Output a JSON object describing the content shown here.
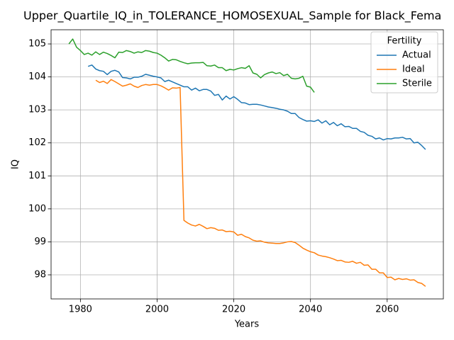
{
  "chart_data": {
    "type": "line",
    "title": "Upper_Quartile_IQ_in_TOLERANCE_HOMOSEXUAL_Sample for Black_Fema",
    "x_label": "Years",
    "y_label": "IQ",
    "x": [
      1977,
      1978,
      1979,
      1980,
      1981,
      1982,
      1983,
      1984,
      1985,
      1986,
      1987,
      1988,
      1989,
      1990,
      1991,
      1992,
      1993,
      1994,
      1995,
      1996,
      1997,
      1998,
      1999,
      2000,
      2001,
      2002,
      2003,
      2004,
      2005,
      2006,
      2007,
      2008,
      2009,
      2010,
      2011,
      2012,
      2013,
      2014,
      2015,
      2016,
      2017,
      2018,
      2019,
      2020,
      2021,
      2022,
      2023,
      2024,
      2025,
      2026,
      2027,
      2028,
      2029,
      2030,
      2031,
      2032,
      2033,
      2034,
      2035,
      2036,
      2037,
      2038,
      2039,
      2040,
      2041,
      2042,
      2043,
      2044,
      2045,
      2046,
      2047,
      2048,
      2049,
      2050,
      2051,
      2052,
      2053,
      2054,
      2055,
      2056,
      2057,
      2058,
      2059,
      2060,
      2061,
      2062,
      2063,
      2064,
      2065,
      2066,
      2067,
      2068,
      2069,
      2070
    ],
    "series": [
      {
        "name": "Actual",
        "color": "#1f77b4",
        "values": [
          null,
          null,
          null,
          null,
          null,
          104.32,
          104.36,
          104.24,
          104.19,
          104.17,
          104.07,
          104.17,
          104.2,
          104.15,
          103.98,
          103.97,
          103.94,
          103.99,
          103.99,
          104.02,
          104.08,
          104.05,
          104.02,
          104.0,
          103.97,
          103.86,
          103.9,
          103.85,
          103.8,
          103.75,
          103.7,
          103.7,
          103.6,
          103.66,
          103.58,
          103.62,
          103.62,
          103.57,
          103.44,
          103.47,
          103.3,
          103.42,
          103.33,
          103.4,
          103.32,
          103.22,
          103.21,
          103.16,
          103.17,
          103.17,
          103.15,
          103.12,
          103.09,
          103.07,
          103.05,
          103.02,
          103.0,
          102.96,
          102.89,
          102.89,
          102.77,
          102.71,
          102.66,
          102.67,
          102.65,
          102.7,
          102.6,
          102.67,
          102.55,
          102.62,
          102.52,
          102.58,
          102.49,
          102.5,
          102.44,
          102.44,
          102.35,
          102.32,
          102.23,
          102.2,
          102.12,
          102.15,
          102.09,
          102.13,
          102.12,
          102.15,
          102.15,
          102.17,
          102.12,
          102.13,
          102.0,
          102.02,
          101.92,
          101.8
        ]
      },
      {
        "name": "Ideal",
        "color": "#ff7f0e",
        "values": [
          null,
          null,
          null,
          null,
          null,
          null,
          null,
          103.9,
          103.83,
          103.87,
          103.8,
          103.92,
          103.86,
          103.79,
          103.72,
          103.75,
          103.79,
          103.72,
          103.68,
          103.74,
          103.77,
          103.75,
          103.77,
          103.77,
          103.73,
          103.67,
          103.6,
          103.67,
          103.66,
          103.68,
          99.65,
          99.57,
          99.51,
          99.48,
          99.53,
          99.47,
          99.4,
          99.43,
          99.41,
          99.35,
          99.36,
          99.31,
          99.32,
          99.3,
          99.2,
          99.23,
          99.16,
          99.12,
          99.05,
          99.02,
          99.03,
          98.99,
          98.97,
          98.96,
          98.95,
          98.95,
          98.97,
          99.0,
          99.01,
          98.98,
          98.9,
          98.81,
          98.75,
          98.7,
          98.67,
          98.6,
          98.57,
          98.55,
          98.52,
          98.48,
          98.43,
          98.44,
          98.39,
          98.38,
          98.41,
          98.35,
          98.38,
          98.29,
          98.3,
          98.17,
          98.17,
          98.06,
          98.06,
          97.92,
          97.93,
          97.85,
          97.89,
          97.86,
          97.88,
          97.84,
          97.85,
          97.77,
          97.74,
          97.65
        ]
      },
      {
        "name": "Sterile",
        "color": "#2ca02c",
        "values": [
          105.0,
          105.15,
          104.9,
          104.8,
          104.68,
          104.72,
          104.66,
          104.76,
          104.68,
          104.75,
          104.71,
          104.65,
          104.58,
          104.75,
          104.74,
          104.8,
          104.77,
          104.72,
          104.76,
          104.74,
          104.8,
          104.78,
          104.74,
          104.72,
          104.66,
          104.58,
          104.48,
          104.53,
          104.52,
          104.47,
          104.43,
          104.4,
          104.42,
          104.43,
          104.43,
          104.44,
          104.34,
          104.33,
          104.36,
          104.28,
          104.28,
          104.19,
          104.23,
          104.21,
          104.25,
          104.28,
          104.26,
          104.34,
          104.12,
          104.08,
          103.97,
          104.07,
          104.12,
          104.15,
          104.1,
          104.13,
          104.04,
          104.08,
          103.96,
          103.94,
          103.96,
          104.02,
          103.72,
          103.69,
          103.53,
          null,
          null,
          null,
          null,
          null,
          null,
          null,
          null,
          null,
          null,
          null,
          null,
          null,
          null,
          null,
          null,
          null,
          null,
          null,
          null,
          null,
          null,
          null,
          null,
          null,
          null,
          null,
          null,
          null
        ]
      }
    ],
    "legend_title": "Fertility",
    "legend": "upper right",
    "grid": true,
    "xlim": [
      1972.35,
      2074.65
    ],
    "xticks": [
      1980,
      2000,
      2020,
      2040,
      2060
    ],
    "ylim": [
      97.27,
      105.43
    ],
    "yticks": [
      98,
      99,
      100,
      101,
      102,
      103,
      104,
      105
    ]
  }
}
